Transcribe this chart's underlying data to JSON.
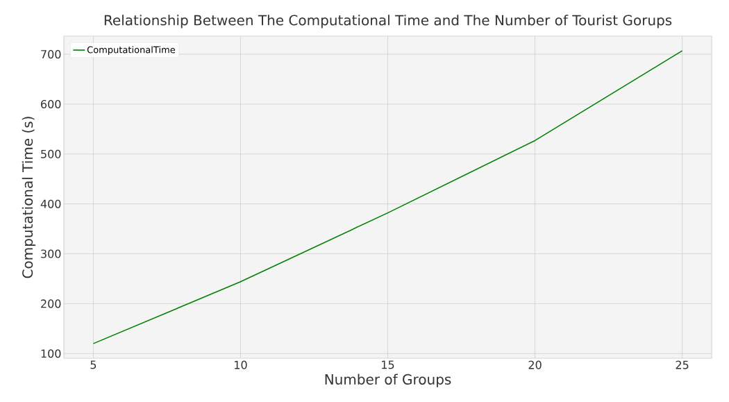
{
  "chart_data": {
    "type": "line",
    "title": "Relationship Between The Computational Time and The Number of Tourist Gorups",
    "xlabel": "Number of Groups",
    "ylabel": "Computational Time (s)",
    "x": [
      5,
      10,
      15,
      20,
      25
    ],
    "series": [
      {
        "name": "ComputationalTime",
        "color": "#008000",
        "values": [
          120,
          244,
          382,
          527,
          707
        ]
      }
    ],
    "xlim": [
      4,
      26
    ],
    "ylim": [
      90.6,
      736.4
    ],
    "xticks": [
      5,
      10,
      15,
      20,
      25
    ],
    "yticks": [
      100,
      200,
      300,
      400,
      500,
      600,
      700
    ],
    "grid": true,
    "legend": "top left",
    "marker": "none",
    "line_style": "solid"
  }
}
